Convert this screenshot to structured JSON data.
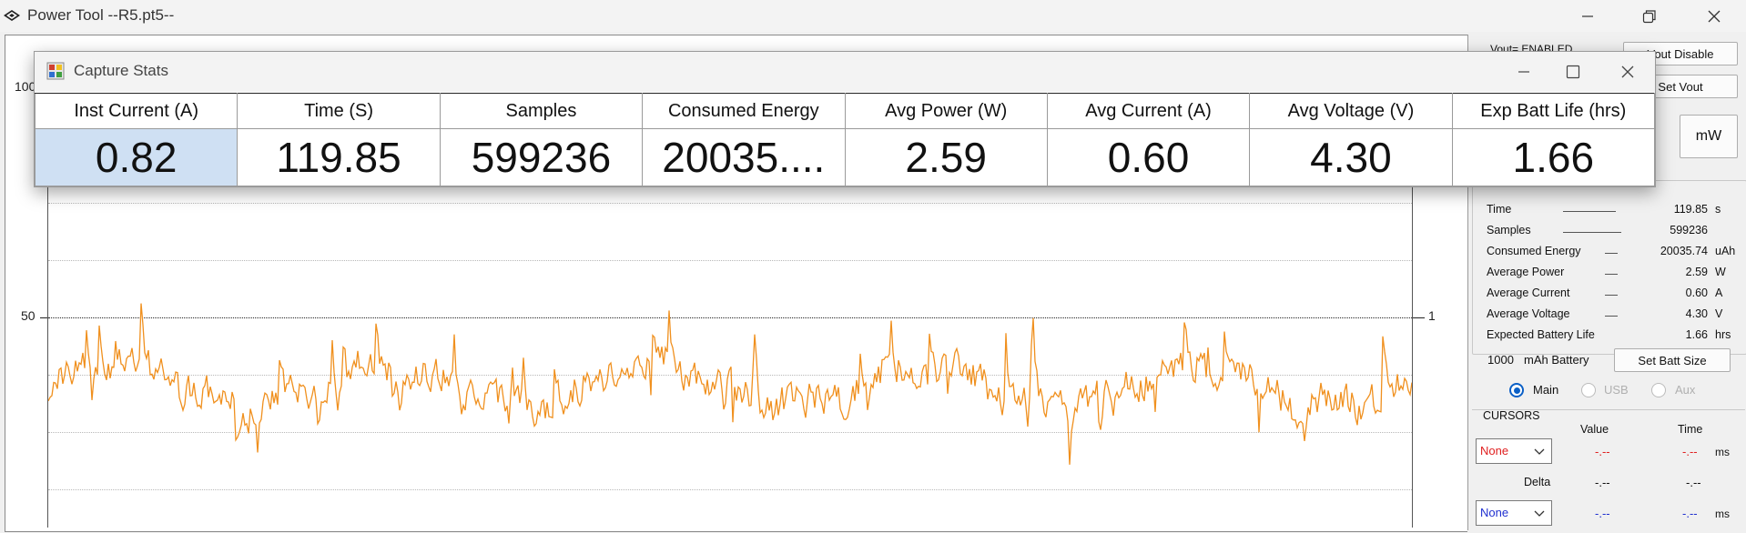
{
  "window": {
    "title": "Power Tool --R5.pt5--",
    "controls": [
      "minimize",
      "restore",
      "close"
    ]
  },
  "plot": {
    "y_left_labels": [
      "100",
      "50"
    ],
    "y_right_labels": [
      "1"
    ],
    "trace_color": "#f0901e",
    "grid": true
  },
  "dialog": {
    "title": "Capture Stats",
    "columns": [
      {
        "header": "Inst Current (A)",
        "value": "0.82"
      },
      {
        "header": "Time (S)",
        "value": "119.85"
      },
      {
        "header": "Samples",
        "value": "599236"
      },
      {
        "header": "Consumed Energy",
        "value": "20035...."
      },
      {
        "header": "Avg Power (W)",
        "value": "2.59"
      },
      {
        "header": "Avg Current (A)",
        "value": "0.60"
      },
      {
        "header": "Avg Voltage (V)",
        "value": "4.30"
      },
      {
        "header": "Exp Batt Life (hrs)",
        "value": "1.66"
      }
    ],
    "selected_color": "#cfe0f3"
  },
  "right_panel": {
    "vout_status": "Vout= ENABLED",
    "vout_disable_button": "Vout Disable",
    "set_vout_button": "Set Vout",
    "unit_button": "mW",
    "stats": [
      {
        "label": "Time",
        "value": "119.85",
        "unit": "s"
      },
      {
        "label": "Samples",
        "value": "599236",
        "unit": ""
      },
      {
        "label": "Consumed Energy",
        "value": "20035.74",
        "unit": "uAh"
      },
      {
        "label": "Average Power",
        "value": "2.59",
        "unit": "W"
      },
      {
        "label": "Average Current",
        "value": "0.60",
        "unit": "A"
      },
      {
        "label": "Average Voltage",
        "value": "4.30",
        "unit": "V"
      },
      {
        "label": "Expected Battery Life",
        "value": "1.66",
        "unit": "hrs"
      }
    ],
    "battery_capacity": "1000",
    "battery_label": "mAh Battery",
    "set_batt_button": "Set Batt Size",
    "channels": [
      {
        "label": "Main",
        "selected": true
      },
      {
        "label": "USB",
        "selected": false
      },
      {
        "label": "Aux",
        "selected": false
      }
    ],
    "cursors": {
      "title": "CURSORS",
      "value_header": "Value",
      "time_header": "Time",
      "cursor1_select": "None",
      "cursor1_value": "-.--",
      "cursor1_time": "-.--",
      "cursor1_unit": "ms",
      "delta_label": "Delta",
      "delta_value": "-.--",
      "delta_time": "-.--",
      "cursor2_select": "None",
      "cursor2_value": "-.--",
      "cursor2_time": "-.--",
      "cursor2_unit": "ms",
      "cursor1_color": "#e02020",
      "cursor2_color": "#2030d0"
    }
  }
}
